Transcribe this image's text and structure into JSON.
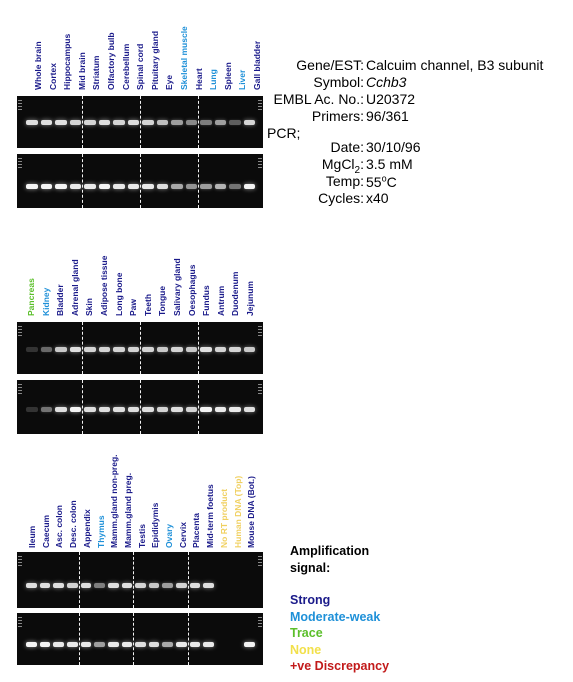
{
  "gene_info": {
    "gene_est_label": "Gene/EST:",
    "gene_est_value": "Calcuim channel, B3 subunit",
    "symbol_label": "Symbol:",
    "symbol_value": "Cchb3",
    "embl_label": "EMBL Ac. No.:",
    "embl_value": "U20372",
    "primers_label": "Primers:",
    "primers_value": "96/361",
    "pcr_label": "PCR;",
    "date_label": "Date:",
    "date_value": "30/10/96",
    "mgcl2_label": "MgCl2:",
    "mgcl2_value": "3.5 mM",
    "temp_label": "Temp:",
    "temp_value": "55oC",
    "cycles_label": "Cycles:",
    "cycles_value": "x40"
  },
  "legend": {
    "title_line1": "Amplification",
    "title_line2": "signal:",
    "items": [
      {
        "label": "Strong",
        "color": "#1a1a8a"
      },
      {
        "label": "Moderate-weak",
        "color": "#1e90d8"
      },
      {
        "label": "Trace",
        "color": "#5bbf2a"
      },
      {
        "label": "None",
        "color": "#f2e04a"
      },
      {
        "label": "+ve Discrepancy",
        "color": "#c21a1a"
      }
    ]
  },
  "colors": {
    "strong": "#1a1a8a",
    "moderate": "#1e90d8",
    "trace": "#5bbf2a",
    "none": "#f0d060",
    "discrepancy": "#c21a1a"
  },
  "panels": [
    {
      "lanes": [
        {
          "label": "Whole brain",
          "signal": "strong"
        },
        {
          "label": "Cortex",
          "signal": "strong"
        },
        {
          "label": "Hippocampus",
          "signal": "strong"
        },
        {
          "label": "Mid brain",
          "signal": "strong"
        },
        {
          "label": "Striatum",
          "signal": "strong"
        },
        {
          "label": "Olfactory bulb",
          "signal": "strong"
        },
        {
          "label": "Cerebellum",
          "signal": "strong"
        },
        {
          "label": "Spinal cord",
          "signal": "strong"
        },
        {
          "label": "Pituitary gland",
          "signal": "strong"
        },
        {
          "label": "Eye",
          "signal": "strong"
        },
        {
          "label": "Skeletal muscle",
          "signal": "moderate"
        },
        {
          "label": "Heart",
          "signal": "strong"
        },
        {
          "label": "Lung",
          "signal": "moderate"
        },
        {
          "label": "Spleen",
          "signal": "strong"
        },
        {
          "label": "Liver",
          "signal": "moderate"
        },
        {
          "label": "Gall bladder",
          "signal": "strong"
        }
      ]
    },
    {
      "lanes": [
        {
          "label": "Pancreas",
          "signal": "trace"
        },
        {
          "label": "Kidney",
          "signal": "moderate"
        },
        {
          "label": "Bladder",
          "signal": "strong"
        },
        {
          "label": "Adrenal gland",
          "signal": "strong"
        },
        {
          "label": "Skin",
          "signal": "strong"
        },
        {
          "label": "Adipose tissue",
          "signal": "strong"
        },
        {
          "label": "Long bone",
          "signal": "strong"
        },
        {
          "label": "Paw",
          "signal": "strong"
        },
        {
          "label": "Teeth",
          "signal": "strong"
        },
        {
          "label": "Tongue",
          "signal": "strong"
        },
        {
          "label": "Salivary gland",
          "signal": "strong"
        },
        {
          "label": "Oesophagus",
          "signal": "strong"
        },
        {
          "label": "Fundus",
          "signal": "strong"
        },
        {
          "label": "Antrum",
          "signal": "strong"
        },
        {
          "label": "Duodenum",
          "signal": "strong"
        },
        {
          "label": "Jejunum",
          "signal": "strong"
        }
      ]
    },
    {
      "lanes": [
        {
          "label": "Ileum",
          "signal": "strong"
        },
        {
          "label": "Caecum",
          "signal": "strong"
        },
        {
          "label": "Asc. colon",
          "signal": "strong"
        },
        {
          "label": "Desc. colon",
          "signal": "strong"
        },
        {
          "label": "Appendix",
          "signal": "strong"
        },
        {
          "label": "Thymus",
          "signal": "moderate"
        },
        {
          "label": "Mamm.gland non-preg.",
          "signal": "strong"
        },
        {
          "label": "Mamm.gland preg.",
          "signal": "strong"
        },
        {
          "label": "Testis",
          "signal": "strong"
        },
        {
          "label": "Epididymis",
          "signal": "strong"
        },
        {
          "label": "Ovary",
          "signal": "moderate"
        },
        {
          "label": "Cervix",
          "signal": "strong"
        },
        {
          "label": "Placenta",
          "signal": "strong"
        },
        {
          "label": "Mid-term foetus",
          "signal": "strong"
        },
        {
          "label": "No RT product",
          "signal": "none"
        },
        {
          "label": "Human DNA (Top)",
          "signal": "none"
        },
        {
          "label": "Mouse DNA (Bot.)",
          "signal": "strong"
        }
      ]
    }
  ],
  "band_intensity": {
    "panel1_top": [
      0.85,
      0.85,
      0.85,
      0.8,
      0.8,
      0.85,
      0.8,
      0.85,
      0.8,
      0.7,
      0.55,
      0.45,
      0.4,
      0.55,
      0.25,
      0.8
    ],
    "panel1_bottom": [
      0.95,
      0.95,
      0.95,
      0.9,
      0.9,
      0.95,
      0.9,
      0.9,
      0.9,
      0.85,
      0.6,
      0.5,
      0.55,
      0.65,
      0.35,
      0.95
    ],
    "panel2_top": [
      0.05,
      0.3,
      0.75,
      0.85,
      0.8,
      0.8,
      0.8,
      0.8,
      0.8,
      0.75,
      0.8,
      0.75,
      0.85,
      0.8,
      0.8,
      0.75
    ],
    "panel2_bottom": [
      0.05,
      0.35,
      0.85,
      0.95,
      0.85,
      0.85,
      0.85,
      0.85,
      0.85,
      0.8,
      0.85,
      0.8,
      0.95,
      0.9,
      0.9,
      0.85
    ],
    "panel3_top": [
      0.85,
      0.85,
      0.85,
      0.8,
      0.85,
      0.4,
      0.85,
      0.85,
      0.8,
      0.75,
      0.55,
      0.8,
      0.85,
      0.85,
      0.0,
      0.0,
      0.0
    ],
    "panel3_bottom": [
      0.95,
      0.95,
      0.9,
      0.9,
      0.9,
      0.55,
      0.9,
      0.9,
      0.85,
      0.85,
      0.6,
      0.9,
      0.9,
      0.9,
      0.0,
      0.0,
      0.95
    ]
  }
}
